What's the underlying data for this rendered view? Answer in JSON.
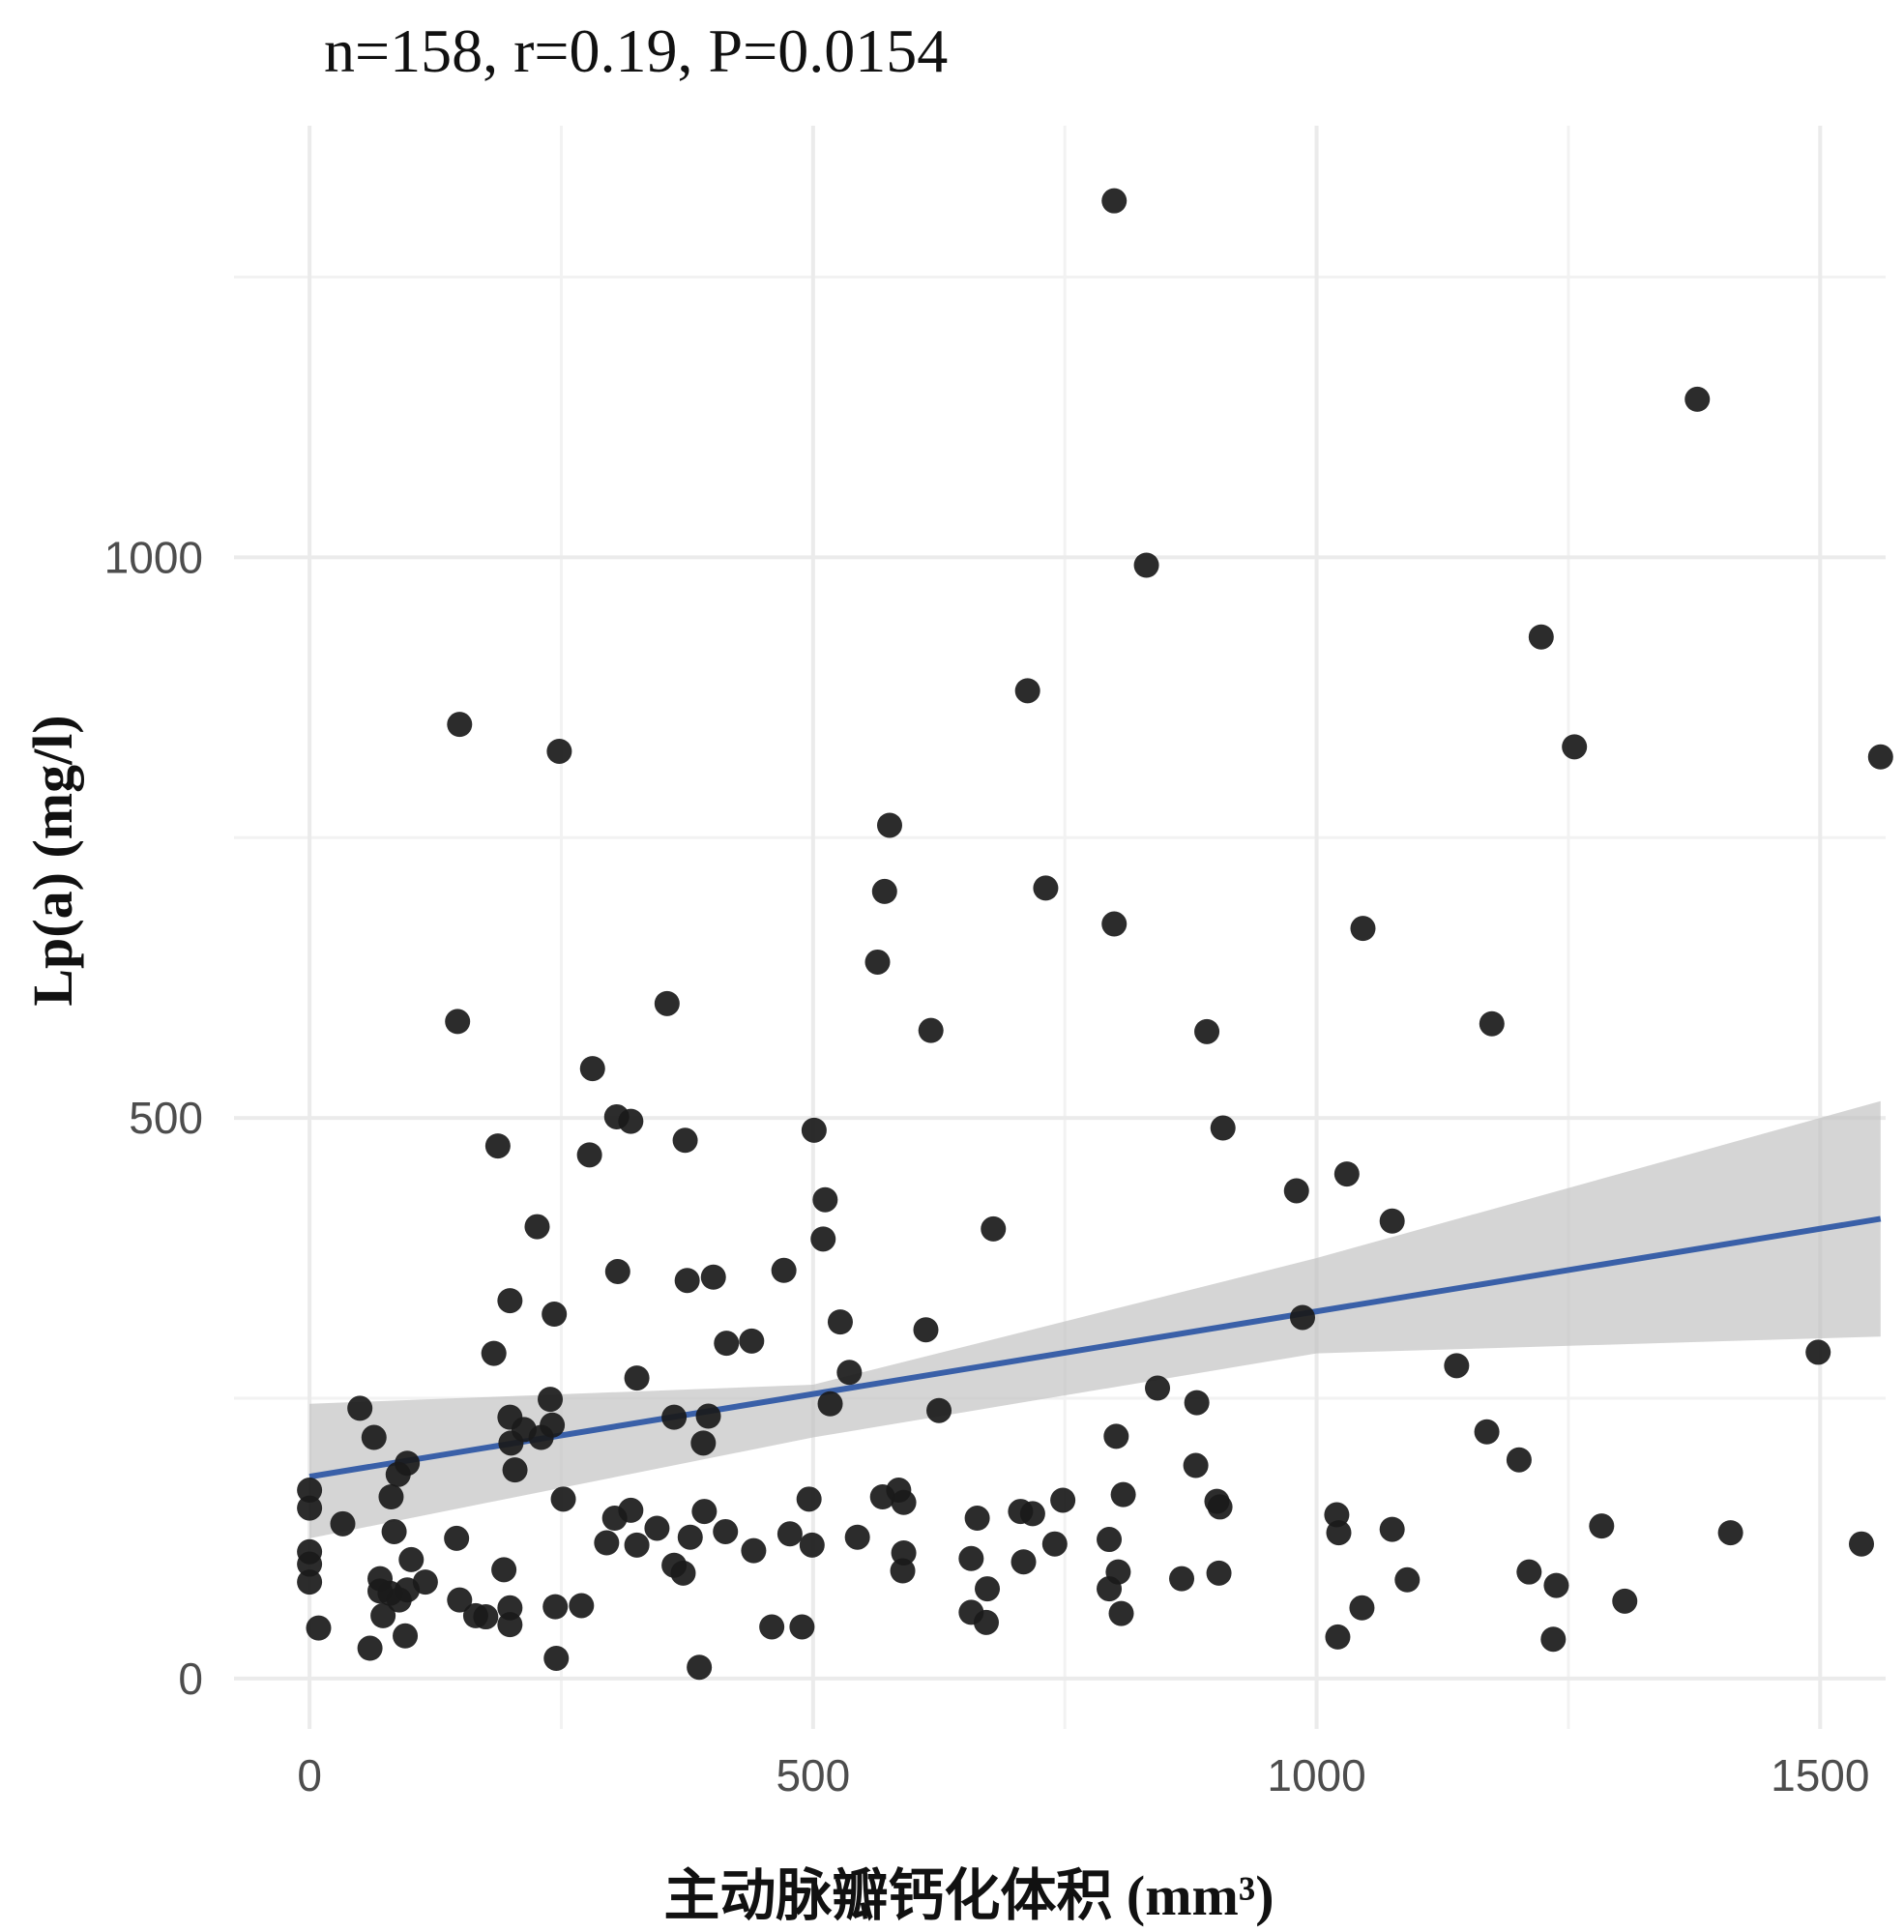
{
  "chart_data": {
    "type": "scatter",
    "title": "n=158, r=0.19, P=0.0154",
    "xlabel": "主动脉瓣钙化体积 (mm³)",
    "ylabel": "Lp(a)  (mg/l)",
    "xlim": [
      -75,
      1565
    ],
    "ylim": [
      -45,
      1385
    ],
    "x_ticks": [
      "0",
      "500",
      "1000",
      "1500"
    ],
    "y_ticks": [
      "0",
      "500",
      "1000"
    ],
    "grid": true,
    "legend": "none",
    "colors": {
      "points": "#1a1a1a",
      "fit_line": "#3a60a8",
      "confidence_band": "#bfbfbf"
    },
    "fit_line": {
      "x": [
        0,
        1560
      ],
      "y": [
        180,
        410
      ]
    },
    "confidence_band": {
      "x": [
        0,
        500,
        1000,
        1560
      ],
      "lower": [
        125,
        215,
        290,
        305
      ],
      "upper": [
        245,
        262,
        375,
        515
      ]
    },
    "points": [
      {
        "x": 799,
        "y": 1318
      },
      {
        "x": 1378,
        "y": 1141
      },
      {
        "x": 831,
        "y": 993
      },
      {
        "x": 1223,
        "y": 929
      },
      {
        "x": 713,
        "y": 881
      },
      {
        "x": 149,
        "y": 851
      },
      {
        "x": 248,
        "y": 827
      },
      {
        "x": 1256,
        "y": 831
      },
      {
        "x": 1560,
        "y": 822
      },
      {
        "x": 576,
        "y": 761
      },
      {
        "x": 571,
        "y": 702
      },
      {
        "x": 731,
        "y": 705
      },
      {
        "x": 799,
        "y": 673
      },
      {
        "x": 1046,
        "y": 669
      },
      {
        "x": 564,
        "y": 639
      },
      {
        "x": 147,
        "y": 586
      },
      {
        "x": 355,
        "y": 602
      },
      {
        "x": 617,
        "y": 578
      },
      {
        "x": 891,
        "y": 577
      },
      {
        "x": 1174,
        "y": 584
      },
      {
        "x": 281,
        "y": 544
      },
      {
        "x": 305,
        "y": 501
      },
      {
        "x": 319,
        "y": 497
      },
      {
        "x": 501,
        "y": 489
      },
      {
        "x": 907,
        "y": 491
      },
      {
        "x": 373,
        "y": 480
      },
      {
        "x": 187,
        "y": 475
      },
      {
        "x": 278,
        "y": 467
      },
      {
        "x": 1030,
        "y": 450
      },
      {
        "x": 980,
        "y": 435
      },
      {
        "x": 512,
        "y": 427
      },
      {
        "x": 226,
        "y": 403
      },
      {
        "x": 679,
        "y": 401
      },
      {
        "x": 1075,
        "y": 408
      },
      {
        "x": 510,
        "y": 392
      },
      {
        "x": 306,
        "y": 363
      },
      {
        "x": 471,
        "y": 364
      },
      {
        "x": 375,
        "y": 355
      },
      {
        "x": 401,
        "y": 358
      },
      {
        "x": 199,
        "y": 337
      },
      {
        "x": 243,
        "y": 325
      },
      {
        "x": 527,
        "y": 318
      },
      {
        "x": 612,
        "y": 311
      },
      {
        "x": 986,
        "y": 322
      },
      {
        "x": 414,
        "y": 299
      },
      {
        "x": 439,
        "y": 301
      },
      {
        "x": 183,
        "y": 290
      },
      {
        "x": 1139,
        "y": 279
      },
      {
        "x": 1498,
        "y": 291
      },
      {
        "x": 325,
        "y": 268
      },
      {
        "x": 536,
        "y": 273
      },
      {
        "x": 842,
        "y": 259
      },
      {
        "x": 239,
        "y": 249
      },
      {
        "x": 50,
        "y": 241
      },
      {
        "x": 517,
        "y": 245
      },
      {
        "x": 625,
        "y": 239
      },
      {
        "x": 881,
        "y": 246
      },
      {
        "x": 199,
        "y": 233
      },
      {
        "x": 362,
        "y": 233
      },
      {
        "x": 396,
        "y": 234
      },
      {
        "x": 213,
        "y": 222
      },
      {
        "x": 241,
        "y": 226
      },
      {
        "x": 230,
        "y": 215
      },
      {
        "x": 64,
        "y": 215
      },
      {
        "x": 801,
        "y": 216
      },
      {
        "x": 1169,
        "y": 220
      },
      {
        "x": 391,
        "y": 210
      },
      {
        "x": 1201,
        "y": 195
      },
      {
        "x": 97,
        "y": 192
      },
      {
        "x": 88,
        "y": 182
      },
      {
        "x": 880,
        "y": 190
      },
      {
        "x": 204,
        "y": 186
      },
      {
        "x": 0,
        "y": 168
      },
      {
        "x": 585,
        "y": 168
      },
      {
        "x": 81,
        "y": 162
      },
      {
        "x": 569,
        "y": 162
      },
      {
        "x": 808,
        "y": 164
      },
      {
        "x": 252,
        "y": 160
      },
      {
        "x": 496,
        "y": 160
      },
      {
        "x": 748,
        "y": 159
      },
      {
        "x": 590,
        "y": 157
      },
      {
        "x": 901,
        "y": 158
      },
      {
        "x": 0,
        "y": 152
      },
      {
        "x": 904,
        "y": 153
      },
      {
        "x": 319,
        "y": 150
      },
      {
        "x": 392,
        "y": 149
      },
      {
        "x": 706,
        "y": 149
      },
      {
        "x": 718,
        "y": 147
      },
      {
        "x": 303,
        "y": 143
      },
      {
        "x": 663,
        "y": 143
      },
      {
        "x": 1020,
        "y": 146
      },
      {
        "x": 33,
        "y": 138
      },
      {
        "x": 345,
        "y": 134
      },
      {
        "x": 1283,
        "y": 136
      },
      {
        "x": 84,
        "y": 131
      },
      {
        "x": 413,
        "y": 131
      },
      {
        "x": 1075,
        "y": 133
      },
      {
        "x": 1022,
        "y": 130
      },
      {
        "x": 1411,
        "y": 130
      },
      {
        "x": 477,
        "y": 129
      },
      {
        "x": 378,
        "y": 126
      },
      {
        "x": 544,
        "y": 126
      },
      {
        "x": 146,
        "y": 125
      },
      {
        "x": 794,
        "y": 124
      },
      {
        "x": 295,
        "y": 121
      },
      {
        "x": 325,
        "y": 119
      },
      {
        "x": 499,
        "y": 119
      },
      {
        "x": 740,
        "y": 120
      },
      {
        "x": 1541,
        "y": 120
      },
      {
        "x": 441,
        "y": 114
      },
      {
        "x": 590,
        "y": 112
      },
      {
        "x": 0,
        "y": 113
      },
      {
        "x": 101,
        "y": 106
      },
      {
        "x": 657,
        "y": 107
      },
      {
        "x": 709,
        "y": 104
      },
      {
        "x": 362,
        "y": 101
      },
      {
        "x": 0,
        "y": 102
      },
      {
        "x": 193,
        "y": 97
      },
      {
        "x": 589,
        "y": 96
      },
      {
        "x": 371,
        "y": 94
      },
      {
        "x": 803,
        "y": 95
      },
      {
        "x": 903,
        "y": 94
      },
      {
        "x": 1211,
        "y": 95
      },
      {
        "x": 70,
        "y": 89
      },
      {
        "x": 115,
        "y": 86
      },
      {
        "x": 866,
        "y": 89
      },
      {
        "x": 1090,
        "y": 88
      },
      {
        "x": 0,
        "y": 86
      },
      {
        "x": 97,
        "y": 79
      },
      {
        "x": 70,
        "y": 78
      },
      {
        "x": 80,
        "y": 76
      },
      {
        "x": 673,
        "y": 80
      },
      {
        "x": 1238,
        "y": 83
      },
      {
        "x": 794,
        "y": 80
      },
      {
        "x": 89,
        "y": 70
      },
      {
        "x": 149,
        "y": 70
      },
      {
        "x": 270,
        "y": 65
      },
      {
        "x": 244,
        "y": 64
      },
      {
        "x": 1306,
        "y": 69
      },
      {
        "x": 199,
        "y": 63
      },
      {
        "x": 1045,
        "y": 63
      },
      {
        "x": 657,
        "y": 59
      },
      {
        "x": 806,
        "y": 58
      },
      {
        "x": 73,
        "y": 56
      },
      {
        "x": 165,
        "y": 56
      },
      {
        "x": 175,
        "y": 55
      },
      {
        "x": 199,
        "y": 48
      },
      {
        "x": 672,
        "y": 50
      },
      {
        "x": 459,
        "y": 46
      },
      {
        "x": 489,
        "y": 46
      },
      {
        "x": 9,
        "y": 45
      },
      {
        "x": 95,
        "y": 38
      },
      {
        "x": 1021,
        "y": 37
      },
      {
        "x": 1235,
        "y": 35
      },
      {
        "x": 60,
        "y": 27
      },
      {
        "x": 245,
        "y": 18
      },
      {
        "x": 387,
        "y": 10
      },
      {
        "x": 200,
        "y": 210
      }
    ]
  }
}
